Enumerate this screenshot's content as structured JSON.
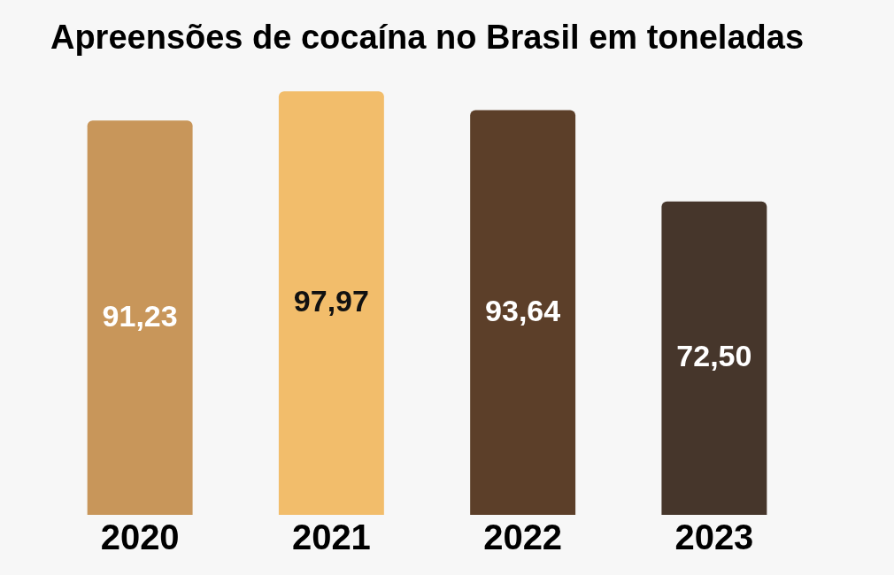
{
  "chart_data": {
    "type": "bar",
    "title": "Apreensões de cocaína no Brasil em toneladas",
    "categories": [
      "2020",
      "2021",
      "2022",
      "2023"
    ],
    "values": [
      91.23,
      97.97,
      93.64,
      72.5
    ],
    "value_labels": [
      "91,23",
      "97,97",
      "93,64",
      "72,50"
    ],
    "colors": [
      "#c8965a",
      "#f2bd6b",
      "#5c3f29",
      "#46362b"
    ],
    "ylim": [
      0,
      100
    ],
    "grid": false,
    "data_labels": true,
    "tick_labels": "x"
  }
}
